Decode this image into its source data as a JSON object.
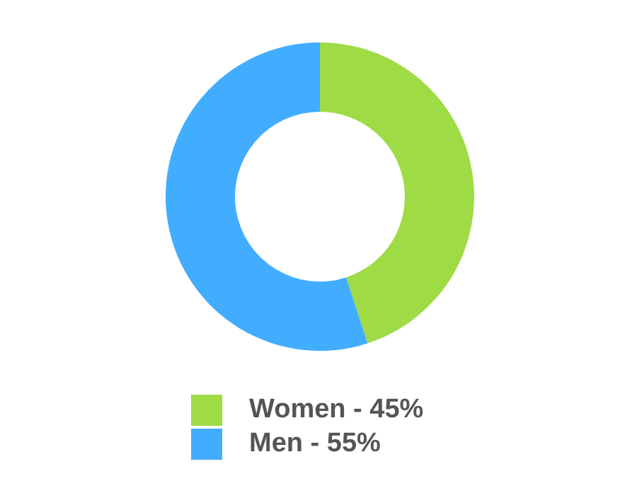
{
  "chart_data": {
    "type": "donut",
    "categories": [
      "Women - 45%",
      "Men - 55%"
    ],
    "values": [
      45,
      55
    ],
    "colors": [
      "#9edb45",
      "#42adff"
    ],
    "legend": "bottom"
  }
}
